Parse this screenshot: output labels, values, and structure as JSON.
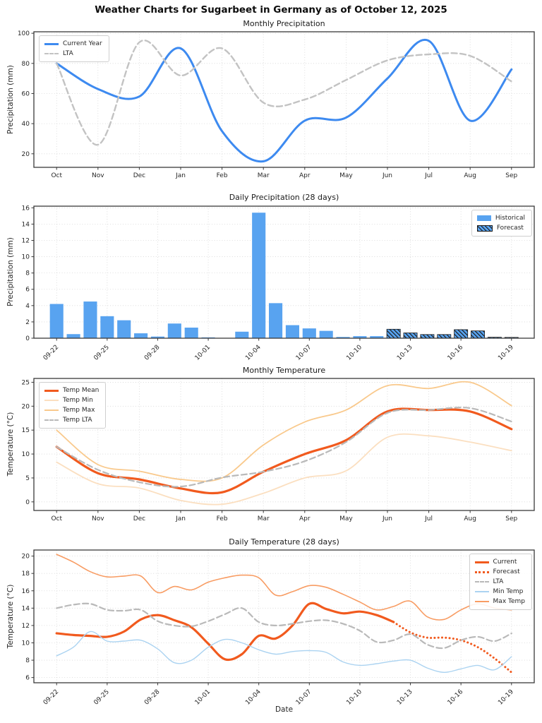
{
  "figure_title": "Weather Charts for Sugarbeet in Germany as of October 12, 2025",
  "chart_data": [
    {
      "type": "line",
      "title": "Monthly Precipitation",
      "ylabel": "Precipitation (mm)",
      "categories": [
        "Oct",
        "Nov",
        "Dec",
        "Jan",
        "Feb",
        "Mar",
        "Apr",
        "May",
        "Jun",
        "Jul",
        "Aug",
        "Sep"
      ],
      "yticks": [
        20,
        40,
        60,
        80,
        100
      ],
      "ylim": [
        11,
        101
      ],
      "xtick_every": 1,
      "rotate_xticks": false,
      "grid": true,
      "legend_position": "top-left",
      "series": [
        {
          "name": "Current Year",
          "color": "#3d8af0",
          "style": "solid",
          "width": 3,
          "values": [
            80,
            63,
            58,
            90,
            35,
            15,
            42,
            44,
            70,
            95,
            42,
            76
          ]
        },
        {
          "name": "LTA",
          "color": "#c3c3c3",
          "style": "dashed",
          "width": 2.4,
          "values": [
            80,
            26,
            94,
            72,
            90,
            54,
            56,
            69,
            82,
            86,
            85,
            68
          ]
        }
      ]
    },
    {
      "type": "bar",
      "title": "Daily Precipitation (28 days)",
      "ylabel": "Precipitation (mm)",
      "categories": [
        "09-22",
        "09-23",
        "09-24",
        "09-25",
        "09-26",
        "09-27",
        "09-28",
        "09-29",
        "09-30",
        "10-01",
        "10-02",
        "10-03",
        "10-04",
        "10-05",
        "10-06",
        "10-07",
        "10-08",
        "10-09",
        "10-10",
        "10-11",
        "10-12",
        "10-13",
        "10-14",
        "10-15",
        "10-16",
        "10-17",
        "10-18",
        "10-19"
      ],
      "yticks": [
        0,
        2,
        4,
        6,
        8,
        10,
        12,
        14,
        16
      ],
      "ylim": [
        0,
        16.2
      ],
      "xtick_every": 3,
      "rotate_xticks": true,
      "grid": true,
      "legend_position": "top-right",
      "forecast_start": "10-12",
      "series": [
        {
          "name": "Historical",
          "type": "bar",
          "color": "#58a3f0",
          "x_start": 0,
          "values": [
            4.2,
            0.5,
            4.5,
            2.7,
            2.2,
            0.6,
            0.2,
            1.8,
            1.3,
            0.1,
            0,
            0.8,
            15.4,
            4.3,
            1.6,
            1.2,
            0.9,
            0.15,
            0.25,
            0.25
          ]
        },
        {
          "name": "Forecast",
          "type": "bar-hatched",
          "color": "#58a3f0",
          "x_start": 20,
          "values": [
            1.1,
            0.65,
            0.45,
            0.45,
            1.05,
            0.9,
            0.12,
            0.1
          ]
        }
      ]
    },
    {
      "type": "line",
      "title": "Monthly Temperature",
      "ylabel": "Temperature (°C)",
      "categories": [
        "Oct",
        "Nov",
        "Dec",
        "Jan",
        "Feb",
        "Mar",
        "Apr",
        "May",
        "Jun",
        "Jul",
        "Aug",
        "Sep"
      ],
      "yticks": [
        0,
        5,
        10,
        15,
        20,
        25
      ],
      "ylim": [
        -1.8,
        25.8
      ],
      "xtick_every": 1,
      "rotate_xticks": false,
      "grid": true,
      "legend_position": "top-left",
      "series": [
        {
          "name": "Temp Mean",
          "color": "#f15a1e",
          "style": "solid",
          "width": 3.2,
          "values": [
            11.5,
            6.0,
            4.7,
            2.8,
            2.0,
            6.3,
            10.0,
            12.9,
            18.9,
            19.2,
            18.9,
            15.2
          ]
        },
        {
          "name": "Temp Min",
          "color": "#fbdfc0",
          "style": "solid",
          "width": 1.8,
          "values": [
            8.3,
            3.8,
            2.9,
            0.3,
            -0.5,
            1.8,
            5.0,
            6.5,
            13.5,
            13.8,
            12.5,
            10.7
          ]
        },
        {
          "name": "Temp Max",
          "color": "#f9c98c",
          "style": "solid",
          "width": 1.8,
          "values": [
            15.0,
            7.8,
            6.4,
            4.7,
            5.0,
            11.9,
            16.7,
            19.2,
            24.3,
            23.7,
            25.0,
            20.1
          ]
        },
        {
          "name": "Temp LTA",
          "color": "#b9b9b9",
          "style": "dashed",
          "width": 2.2,
          "values": [
            11.5,
            6.7,
            4.1,
            3.2,
            5.1,
            6.3,
            8.5,
            12.5,
            18.6,
            19.2,
            19.6,
            16.8
          ]
        }
      ]
    },
    {
      "type": "line",
      "title": "Daily Temperature (28 days)",
      "ylabel": "Temperature (°C)",
      "xlabel": "Date",
      "categories": [
        "09-22",
        "09-23",
        "09-24",
        "09-25",
        "09-26",
        "09-27",
        "09-28",
        "09-29",
        "09-30",
        "10-01",
        "10-02",
        "10-03",
        "10-04",
        "10-05",
        "10-06",
        "10-07",
        "10-08",
        "10-09",
        "10-10",
        "10-11",
        "10-12",
        "10-13",
        "10-14",
        "10-15",
        "10-16",
        "10-17",
        "10-18",
        "10-19"
      ],
      "yticks": [
        6,
        8,
        10,
        12,
        14,
        16,
        18,
        20
      ],
      "ylim": [
        5.4,
        20.7
      ],
      "xtick_every": 3,
      "rotate_xticks": true,
      "grid": true,
      "legend_position": "top-right",
      "forecast_start": "10-12",
      "series": [
        {
          "name": "Current",
          "color": "#f15a1e",
          "style": "solid",
          "width": 3.2,
          "x_start": 0,
          "values": [
            11.1,
            10.9,
            10.8,
            10.7,
            11.3,
            12.7,
            13.2,
            12.6,
            11.8,
            9.9,
            8.1,
            8.7,
            10.8,
            10.5,
            12.0,
            14.5,
            13.9,
            13.4,
            13.6,
            13.2,
            12.4
          ]
        },
        {
          "name": "Forecast",
          "color": "#f15a1e",
          "style": "dotted",
          "width": 3,
          "x_start": 20,
          "values": [
            12.4,
            11.2,
            10.6,
            10.6,
            10.3,
            9.5,
            8.2,
            6.6
          ]
        },
        {
          "name": "LTA",
          "color": "#b9b9b9",
          "style": "dashed",
          "width": 2.2,
          "x_start": 0,
          "values": [
            14.0,
            14.4,
            14.5,
            13.8,
            13.7,
            13.8,
            12.5,
            12.0,
            11.9,
            12.5,
            13.3,
            14.0,
            12.4,
            12.0,
            12.2,
            12.5,
            12.6,
            12.2,
            11.4,
            10.1,
            10.3,
            11.0,
            9.8,
            9.4,
            10.3,
            10.7,
            10.2,
            11.1
          ]
        },
        {
          "name": "Min Temp",
          "color": "#abd3f1",
          "style": "solid",
          "width": 1.4,
          "x_start": 0,
          "values": [
            8.5,
            9.5,
            11.3,
            10.2,
            10.2,
            10.3,
            9.3,
            7.7,
            8.0,
            9.5,
            10.4,
            10.0,
            9.2,
            8.7,
            9.0,
            9.1,
            8.9,
            7.8,
            7.4,
            7.6,
            7.9,
            8.0,
            7.1,
            6.6,
            7.0,
            7.4,
            6.9,
            8.4
          ]
        },
        {
          "name": "Max Temp",
          "color": "#f89c63",
          "style": "solid",
          "width": 1.6,
          "x_start": 0,
          "values": [
            20.2,
            19.3,
            18.2,
            17.6,
            17.7,
            17.7,
            15.8,
            16.5,
            16.1,
            17.0,
            17.5,
            17.8,
            17.5,
            15.5,
            15.9,
            16.6,
            16.4,
            15.6,
            14.7,
            13.8,
            14.2,
            14.8,
            13.0,
            12.7,
            13.8,
            14.5,
            14.0,
            13.8
          ]
        }
      ]
    }
  ]
}
